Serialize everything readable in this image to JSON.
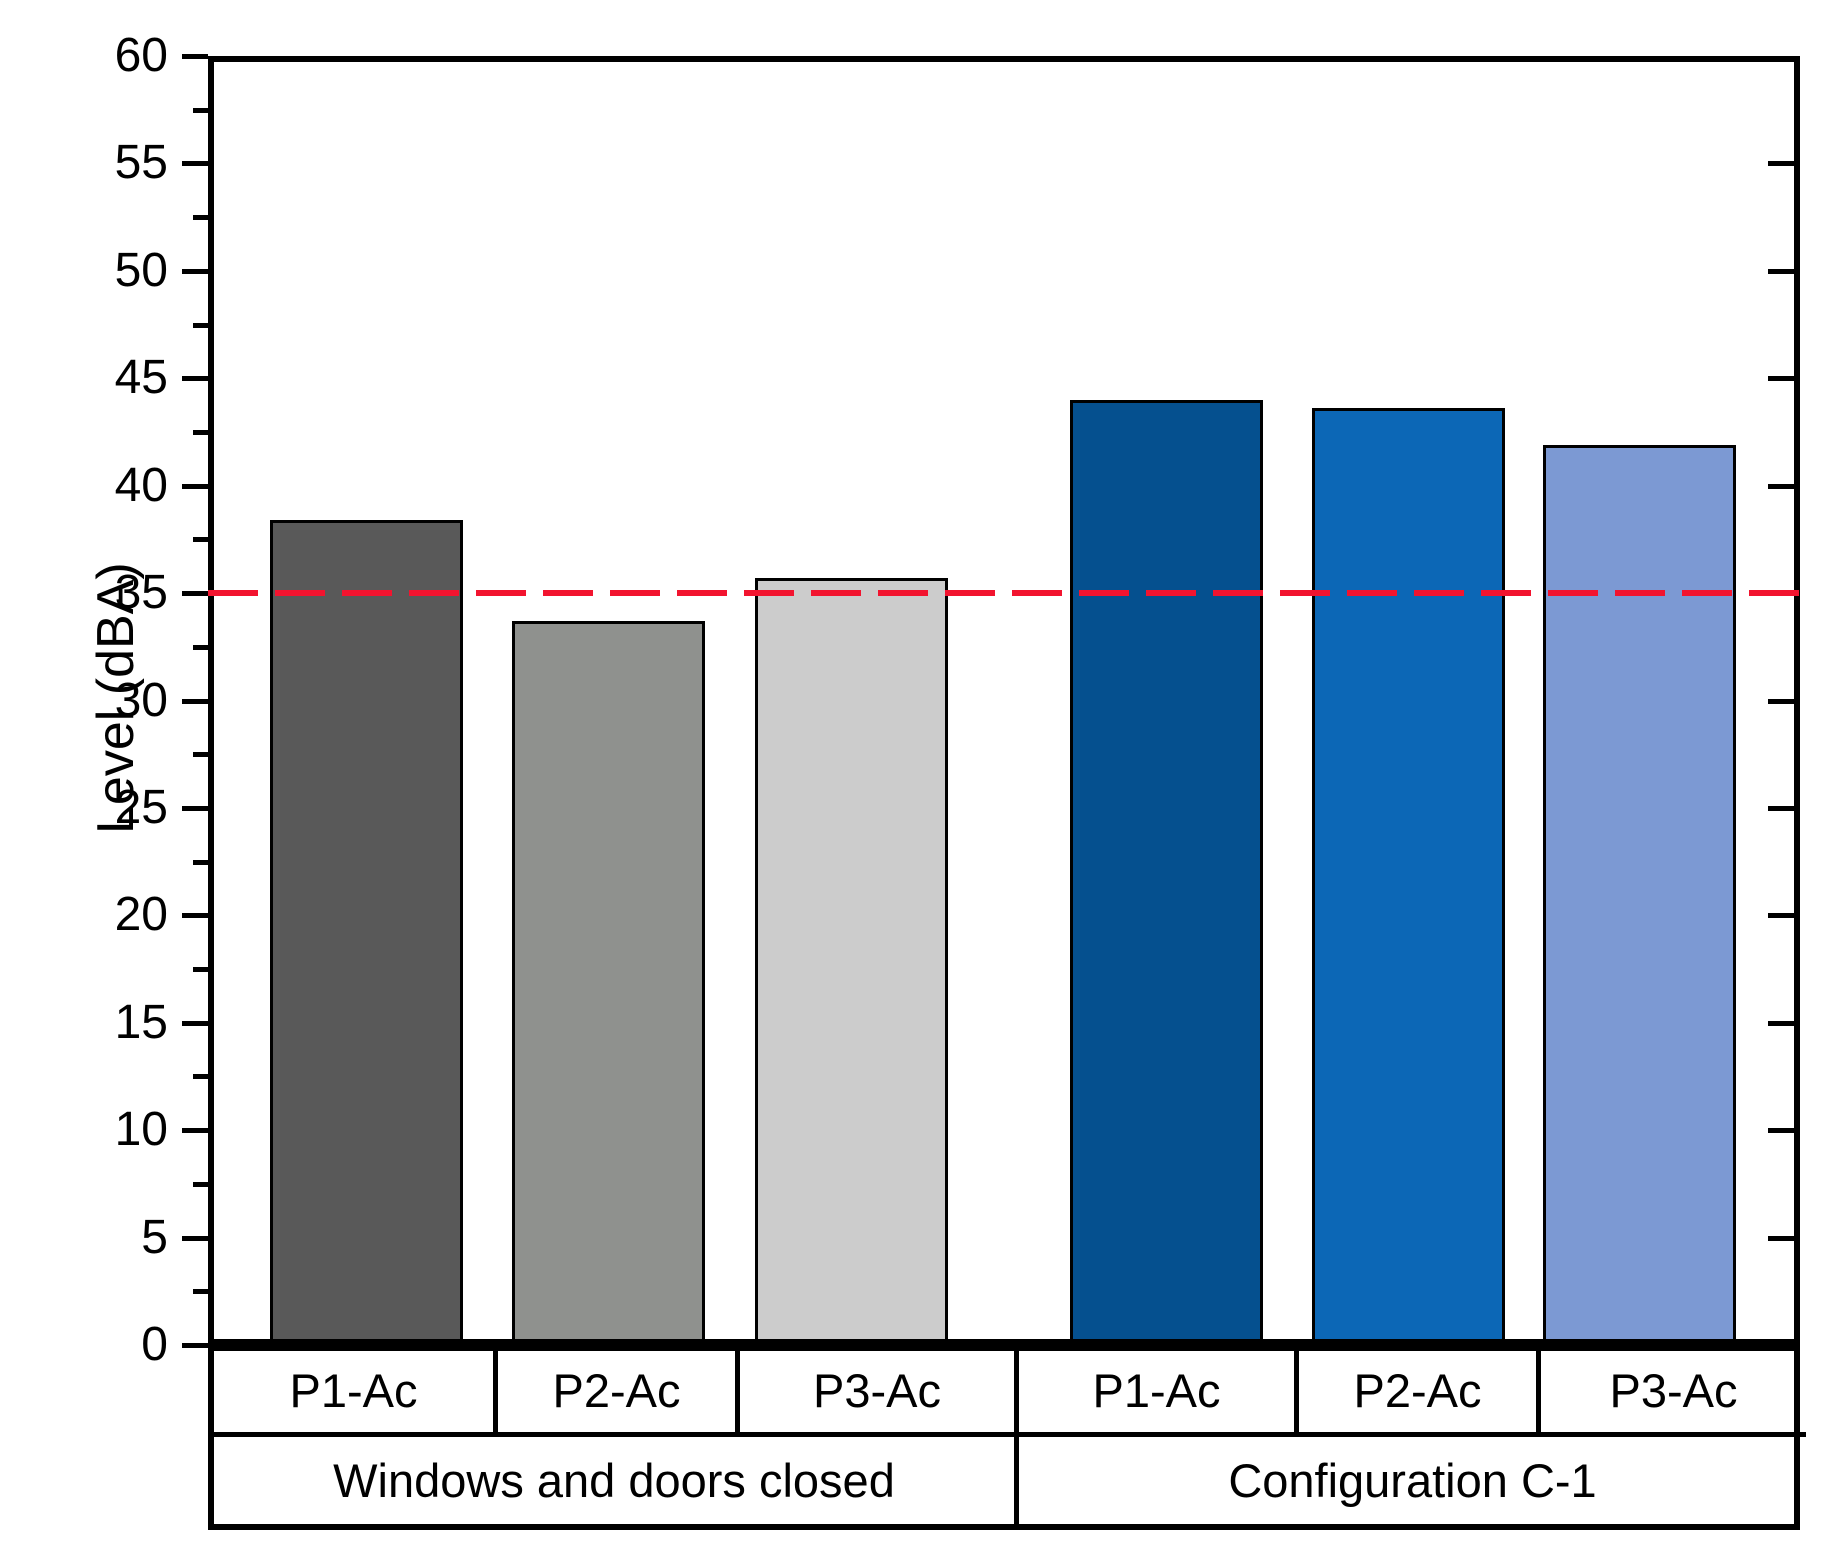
{
  "chart_data": {
    "type": "bar",
    "title": "",
    "xlabel": "",
    "ylabel": "Level (dBA)",
    "ylim": [
      0,
      60
    ],
    "y_tick_step": 5,
    "y_minor_tick_step": 2.5,
    "grid": false,
    "legend": "none",
    "reference_line": {
      "value": 35,
      "color": "#F2142F",
      "style": "dashed"
    },
    "groups": [
      {
        "label": "Windows and doors closed",
        "bars": [
          {
            "category": "P1-Ac",
            "value": 38.4,
            "color": "#595959"
          },
          {
            "category": "P2-Ac",
            "value": 33.7,
            "color": "#8F918E"
          },
          {
            "category": "P3-Ac",
            "value": 35.7,
            "color": "#CCCCCC"
          }
        ]
      },
      {
        "label": "Configuration C-1",
        "bars": [
          {
            "category": "P1-Ac",
            "value": 44.0,
            "color": "#05508F"
          },
          {
            "category": "P2-Ac",
            "value": 43.6,
            "color": "#0C67B6"
          },
          {
            "category": "P3-Ac",
            "value": 41.9,
            "color": "#7C99D3"
          }
        ]
      }
    ],
    "bar_outline_color": "#000000",
    "axis_color": "#000000"
  }
}
